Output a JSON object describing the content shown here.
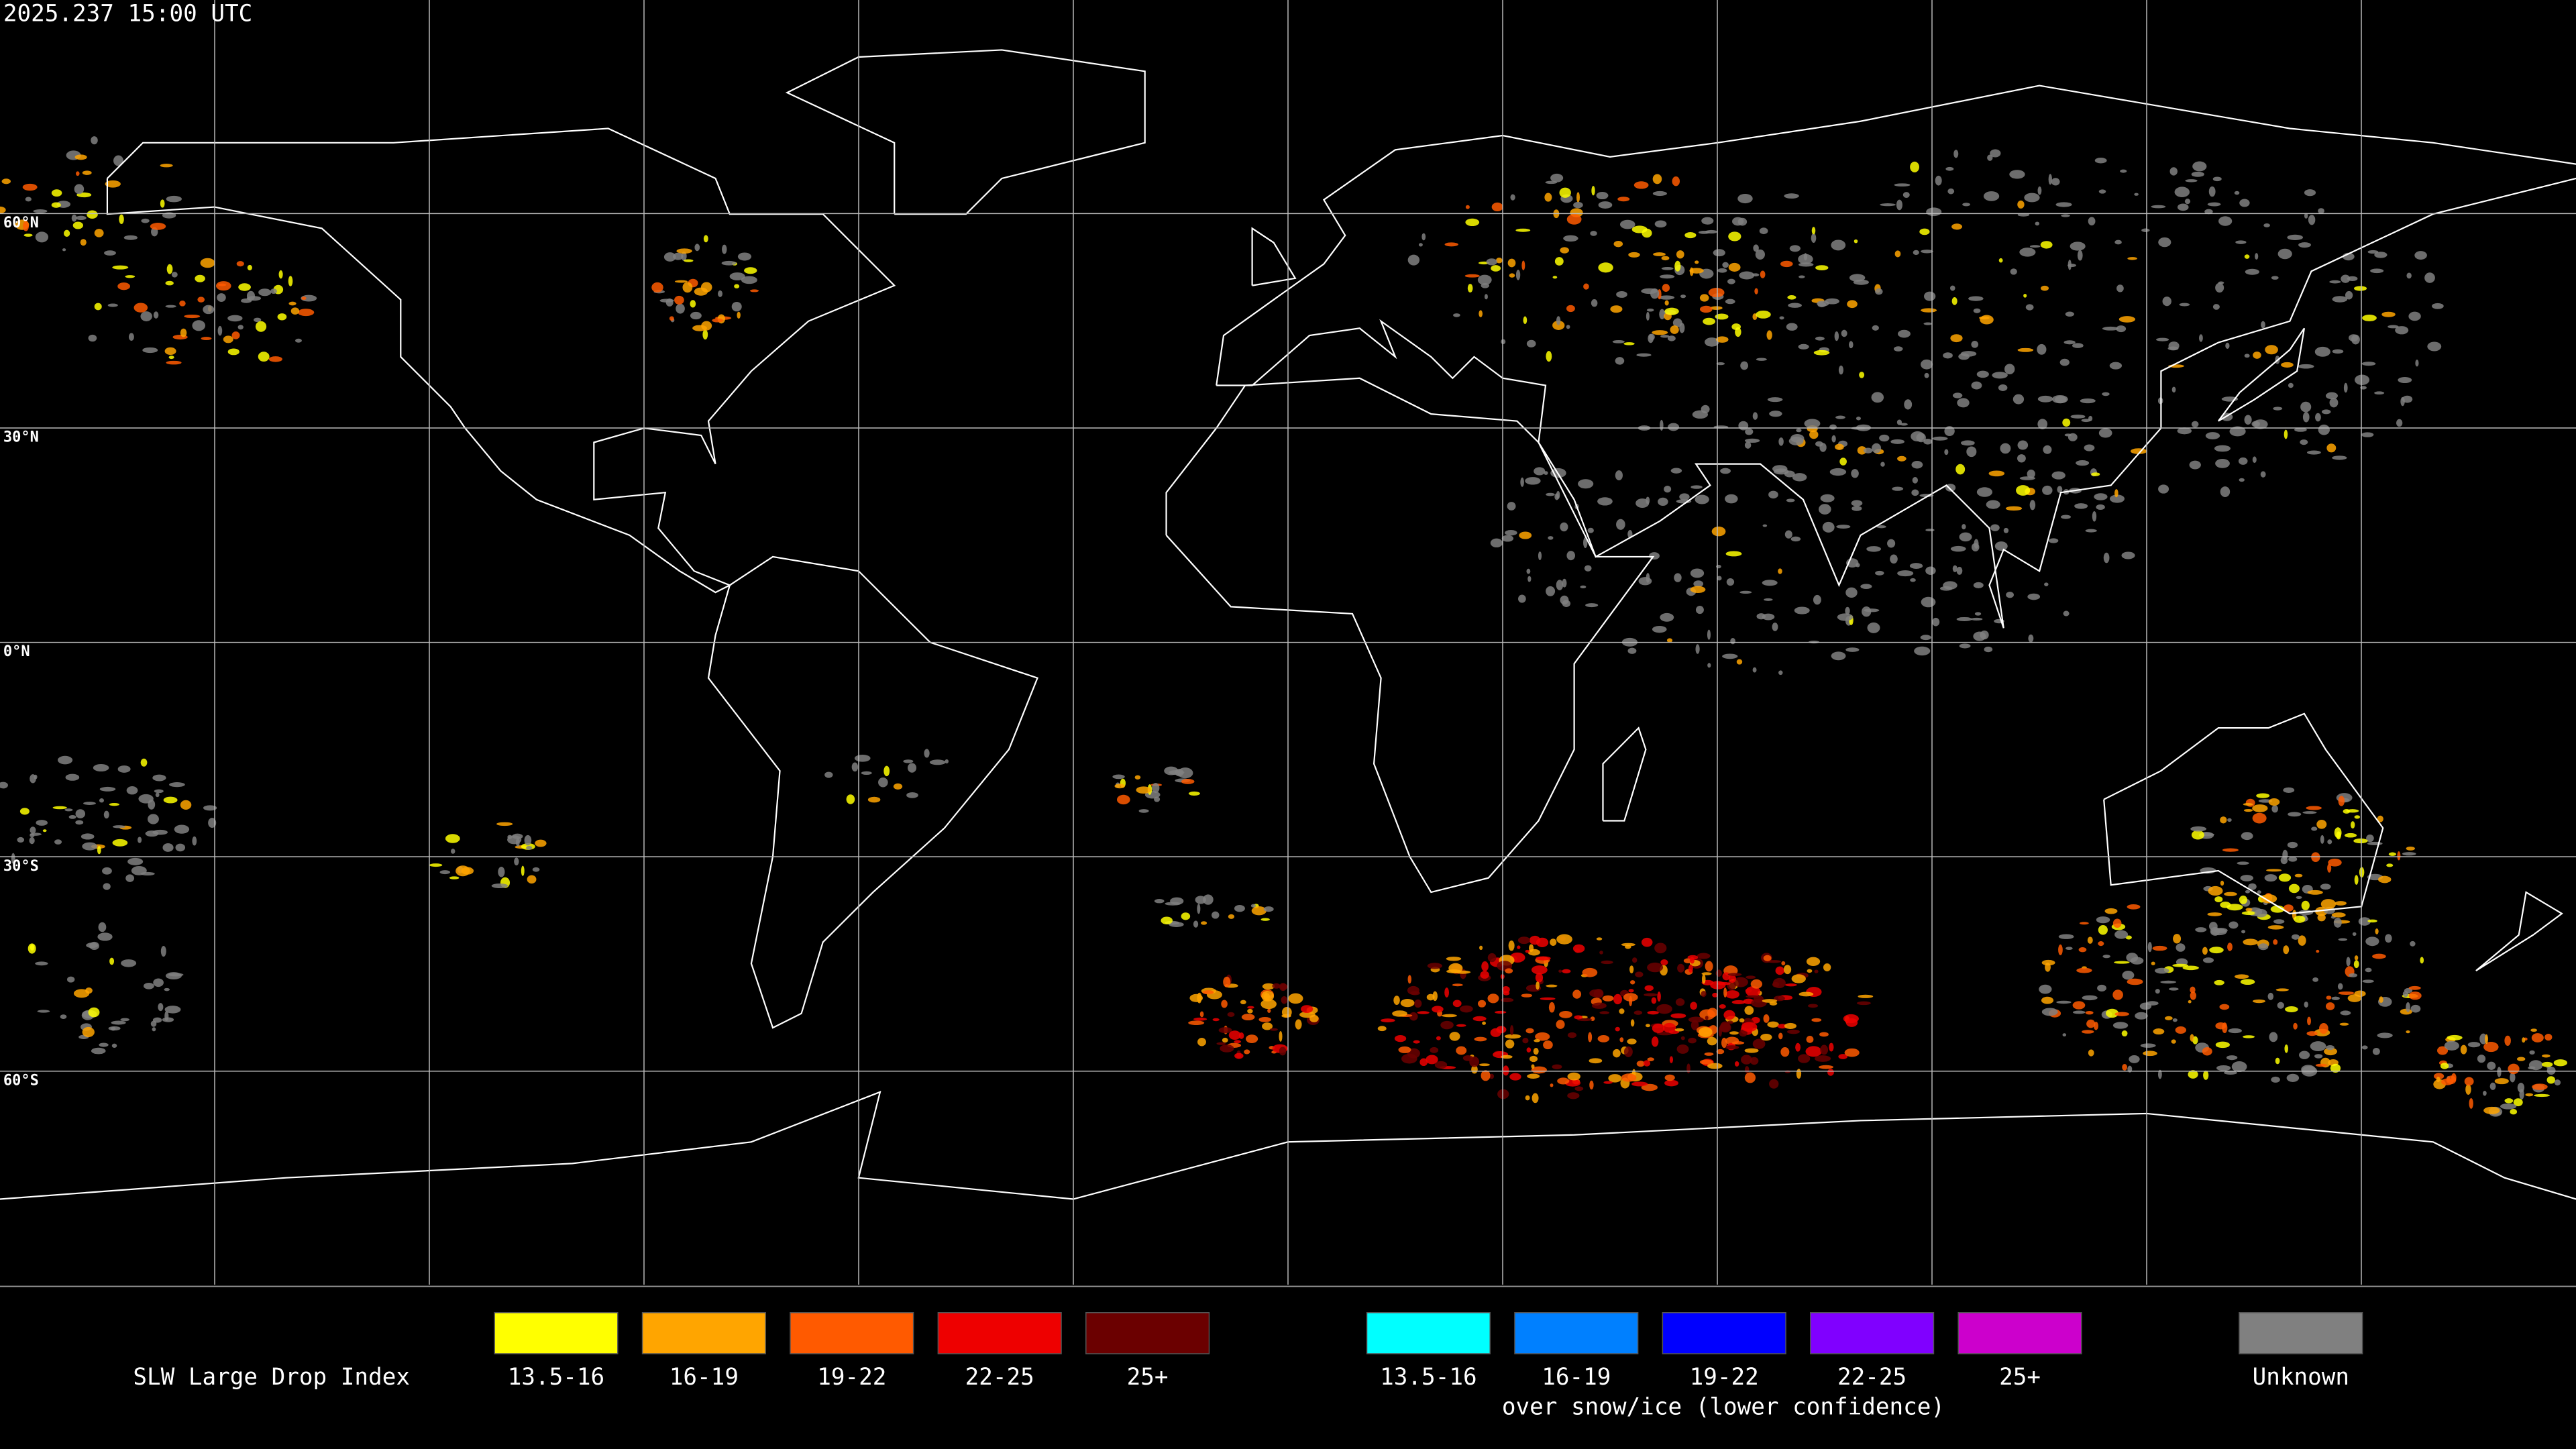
{
  "header": {
    "timestamp": "2025.237 15:00 UTC"
  },
  "map": {
    "latitude_labels": [
      "60°N",
      "30°N",
      "0°N",
      "30°S",
      "60°S"
    ]
  },
  "legend": {
    "title": "SLW Large Drop Index",
    "items": [
      {
        "label": "13.5-16",
        "color": "#ffff00"
      },
      {
        "label": "16-19",
        "color": "#ffa500"
      },
      {
        "label": "19-22",
        "color": "#ff5a00"
      },
      {
        "label": "22-25",
        "color": "#ee0000"
      },
      {
        "label": "25+",
        "color": "#6b0000"
      }
    ],
    "snow_items": [
      {
        "label": "13.5-16",
        "color": "#00ffff"
      },
      {
        "label": "16-19",
        "color": "#0080ff"
      },
      {
        "label": "19-22",
        "color": "#0000ff"
      },
      {
        "label": "22-25",
        "color": "#8000ff"
      },
      {
        "label": "25+",
        "color": "#cc00cc"
      }
    ],
    "snow_caption": "over snow/ice (lower confidence)",
    "unknown": {
      "label": "Unknown",
      "color": "#808080"
    }
  }
}
